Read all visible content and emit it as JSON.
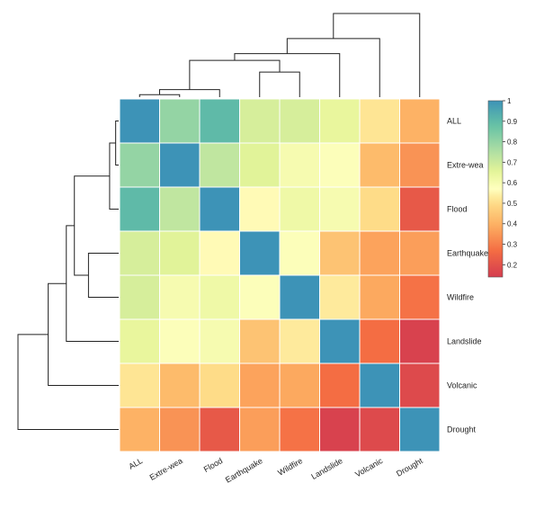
{
  "chart_data": {
    "type": "heatmap",
    "title": "",
    "labels": [
      "ALL",
      "Extre-wea",
      "Flood",
      "Earthquake",
      "Wildfire",
      "Landslide",
      "Volcanic",
      "Drought"
    ],
    "matrix": [
      [
        1.0,
        0.8,
        0.9,
        0.68,
        0.68,
        0.64,
        0.52,
        0.4
      ],
      [
        0.8,
        1.0,
        0.72,
        0.66,
        0.6,
        0.58,
        0.42,
        0.34
      ],
      [
        0.9,
        0.72,
        1.0,
        0.56,
        0.62,
        0.6,
        0.5,
        0.22
      ],
      [
        0.68,
        0.66,
        0.56,
        1.0,
        0.58,
        0.44,
        0.37,
        0.36
      ],
      [
        0.68,
        0.6,
        0.62,
        0.58,
        1.0,
        0.53,
        0.38,
        0.28
      ],
      [
        0.64,
        0.58,
        0.6,
        0.44,
        0.53,
        1.0,
        0.27,
        0.16
      ],
      [
        0.52,
        0.42,
        0.5,
        0.37,
        0.38,
        0.27,
        1.0,
        0.18
      ],
      [
        0.4,
        0.34,
        0.22,
        0.36,
        0.28,
        0.16,
        0.18,
        1.0
      ]
    ],
    "row_dendrogram": [
      {
        "children": [
          "ALL",
          "Extre-wea"
        ],
        "height": 0.03
      },
      {
        "children": [
          0,
          "Flood"
        ],
        "height": 0.09
      },
      {
        "children": [
          "Earthquake",
          "Wildfire"
        ],
        "height": 0.3
      },
      {
        "children": [
          1,
          2
        ],
        "height": 0.44
      },
      {
        "children": [
          3,
          "Landslide"
        ],
        "height": 0.52
      },
      {
        "children": [
          4,
          "Volcanic"
        ],
        "height": 0.7
      },
      {
        "children": [
          5,
          "Drought"
        ],
        "height": 1.0
      }
    ],
    "col_dendrogram": [
      {
        "children": [
          "ALL",
          "Extre-wea"
        ],
        "height": 0.03
      },
      {
        "children": [
          0,
          "Flood"
        ],
        "height": 0.09
      },
      {
        "children": [
          "Earthquake",
          "Wildfire"
        ],
        "height": 0.3
      },
      {
        "children": [
          1,
          2
        ],
        "height": 0.44
      },
      {
        "children": [
          3,
          "Landslide"
        ],
        "height": 0.52
      },
      {
        "children": [
          4,
          "Volcanic"
        ],
        "height": 0.7
      },
      {
        "children": [
          5,
          "Drought"
        ],
        "height": 1.0
      }
    ],
    "colorbar": {
      "ticks": [
        1,
        0.9,
        0.8,
        0.7,
        0.6,
        0.5,
        0.4,
        0.3,
        0.2
      ],
      "tick_labels": [
        "1",
        "0.9",
        "0.8",
        "0.7",
        "0.6",
        "0.5",
        "0.4",
        "0.3",
        "0.2"
      ],
      "range": [
        0.14,
        1.0
      ],
      "placement": "right"
    },
    "colormap": [
      {
        "v": 0.15,
        "color": "#d53e4f"
      },
      {
        "v": 0.27,
        "color": "#f46d43"
      },
      {
        "v": 0.39,
        "color": "#fdae61"
      },
      {
        "v": 0.51,
        "color": "#fee08b"
      },
      {
        "v": 0.57,
        "color": "#ffffbf"
      },
      {
        "v": 0.65,
        "color": "#e6f598"
      },
      {
        "v": 0.76,
        "color": "#abdda4"
      },
      {
        "v": 0.88,
        "color": "#66c2a5"
      },
      {
        "v": 1.0,
        "color": "#3d93b7"
      }
    ]
  }
}
